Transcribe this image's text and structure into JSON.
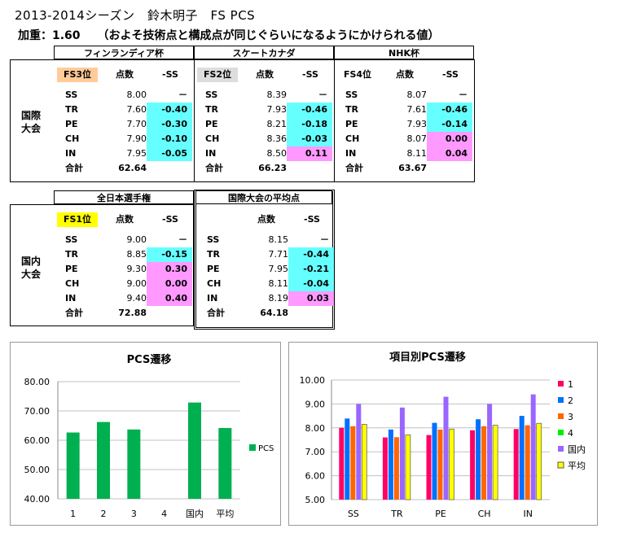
{
  "title": "2013-2014シーズン　鈴木明子　FS PCS",
  "subtitle": "加重：1.60　　（およそ技術点と構成点が同じぐらいになるようにかけられる値）",
  "intl_label": [
    "国際",
    "大会"
  ],
  "dom_label": [
    "国内",
    "大会"
  ],
  "col_headers": {
    "points": "点数",
    "minus_ss": "-SS"
  },
  "row_labels": [
    "SS",
    "TR",
    "PE",
    "CH",
    "IN",
    "合計"
  ],
  "intl_events": [
    {
      "name": "フィンランディア杯",
      "rank": "FS3位",
      "values": [
        "8.00",
        "7.60",
        "7.70",
        "7.90",
        "7.95"
      ],
      "diffs": [
        "－",
        "-0.40",
        "-0.30",
        "-0.10",
        "-0.05"
      ],
      "total": "62.64"
    },
    {
      "name": "スケートカナダ",
      "rank": "FS2位",
      "values": [
        "8.39",
        "7.93",
        "8.21",
        "8.36",
        "8.50"
      ],
      "diffs": [
        "－",
        "-0.46",
        "-0.18",
        "-0.03",
        "0.11"
      ],
      "total": "66.23"
    },
    {
      "name": "NHK杯",
      "rank": "FS4位",
      "values": [
        "8.07",
        "7.61",
        "7.93",
        "8.07",
        "8.11"
      ],
      "diffs": [
        "－",
        "-0.46",
        "-0.14",
        "0.00",
        "0.04"
      ],
      "total": "63.67"
    }
  ],
  "dom_events": [
    {
      "name": "全日本選手権",
      "rank": "FS1位",
      "values": [
        "9.00",
        "8.85",
        "9.30",
        "9.00",
        "9.40"
      ],
      "diffs": [
        "－",
        "-0.15",
        "0.30",
        "0.00",
        "0.40"
      ],
      "total": "72.88"
    },
    {
      "name": "国際大会の平均点",
      "rank": "",
      "values": [
        "8.15",
        "7.71",
        "7.95",
        "8.11",
        "8.19"
      ],
      "diffs": [
        "－",
        "-0.44",
        "-0.21",
        "-0.04",
        "0.03"
      ],
      "total": "64.18"
    }
  ],
  "colors": {
    "cyan": "#66ffff",
    "pink": "#ff99ff",
    "bar_green": "#00b050",
    "grid": "#c0c0c0"
  },
  "chart_data": [
    {
      "type": "bar",
      "title": "PCS遷移",
      "categories": [
        "1",
        "2",
        "3",
        "4",
        "国内",
        "平均"
      ],
      "series": [
        {
          "name": "PCS",
          "values": [
            62.64,
            66.23,
            63.67,
            null,
            72.88,
            64.18
          ],
          "color": "#00b050"
        }
      ],
      "ylim": [
        40,
        80
      ],
      "yticks": [
        "40.00",
        "50.00",
        "60.00",
        "70.00",
        "80.00"
      ],
      "grid": true,
      "legend": "right"
    },
    {
      "type": "bar",
      "title": "項目別PCS遷移",
      "categories": [
        "SS",
        "TR",
        "PE",
        "CH",
        "IN"
      ],
      "series": [
        {
          "name": "1",
          "values": [
            8.0,
            7.6,
            7.7,
            7.9,
            7.95
          ],
          "color": "#ff0066"
        },
        {
          "name": "2",
          "values": [
            8.39,
            7.93,
            8.21,
            8.36,
            8.5
          ],
          "color": "#0070ff"
        },
        {
          "name": "3",
          "values": [
            8.07,
            7.61,
            7.93,
            8.07,
            8.11
          ],
          "color": "#ff6600"
        },
        {
          "name": "4",
          "values": [
            null,
            null,
            null,
            null,
            null
          ],
          "color": "#00ee00"
        },
        {
          "name": "国内",
          "values": [
            9.0,
            8.85,
            9.3,
            9.0,
            9.4
          ],
          "color": "#9966ff"
        },
        {
          "name": "平均",
          "values": [
            8.15,
            7.71,
            7.95,
            8.11,
            8.19
          ],
          "color": "#ffff00"
        }
      ],
      "ylim": [
        5,
        10
      ],
      "yticks": [
        "5.00",
        "6.00",
        "7.00",
        "8.00",
        "9.00",
        "10.00"
      ],
      "grid": true,
      "legend": "right"
    }
  ]
}
